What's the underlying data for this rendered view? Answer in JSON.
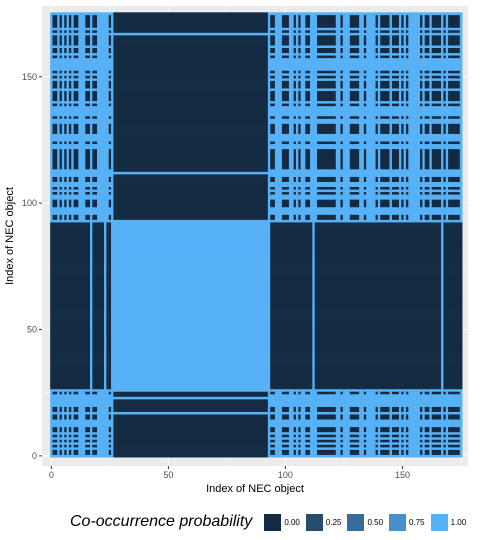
{
  "chart_data": {
    "type": "heatmap",
    "title": "",
    "xlabel": "Index of NEC object",
    "ylabel": "Index of NEC object",
    "xlim": [
      -4,
      178
    ],
    "ylim": [
      -4,
      178
    ],
    "x_ticks": [
      0,
      50,
      100,
      150
    ],
    "y_ticks": [
      0,
      50,
      100,
      150
    ],
    "n_objects": 176,
    "grid": true,
    "legend_position": "bottom",
    "legend": {
      "title": "Co-occurrence probability",
      "breaks": [
        0.0,
        0.25,
        0.5,
        0.75,
        1.0
      ],
      "labels": [
        "0.00",
        "0.25",
        "0.50",
        "0.75",
        "1.00"
      ],
      "low_color": "#132B43",
      "high_color": "#56B1F7"
    },
    "blocks": [
      {
        "rows": [
          26,
          93
        ],
        "cols": [
          26,
          93
        ],
        "value": 1.0
      }
    ],
    "line_indices": [
      17,
      23,
      26,
      93,
      112,
      167
    ],
    "high_region_indices": [
      [
        0,
        25
      ],
      [
        94,
        175
      ]
    ],
    "colors": {
      "panel_background": "#EBEBEB",
      "gridline": "#FFFFFF"
    }
  }
}
